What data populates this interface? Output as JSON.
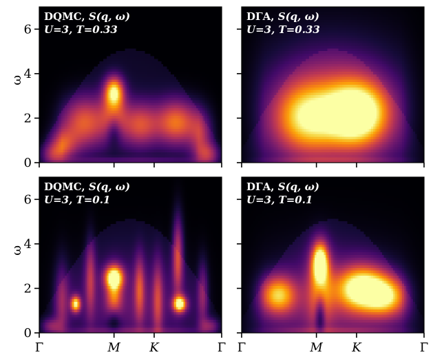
{
  "figure": {
    "shared_ylabel": "ω",
    "colormap": "inferno"
  },
  "chart_data": [
    {
      "type": "heatmap",
      "panel": "top-left",
      "annotation": {
        "line1_method": "DQMC,",
        "line1_func": "S(q, ω)",
        "line2": "U=3, T=0.33"
      },
      "ylabel": "ω",
      "ylim": [
        0,
        7
      ],
      "yticks": [
        "0",
        "2",
        "4",
        "6"
      ],
      "xticks": [
        "Γ",
        "M",
        "K",
        "Γ"
      ],
      "xtick_positions": [
        0,
        0.41,
        0.63,
        1.0
      ],
      "xtick_labels_shown": false,
      "blobs": [
        {
          "x": 0.41,
          "w": 3.2,
          "sx": 0.035,
          "sy": 0.45,
          "a": 0.75
        },
        {
          "x": 0.41,
          "w": 2.2,
          "sx": 0.05,
          "sy": 0.8,
          "a": 0.45
        },
        {
          "x": 0.25,
          "w": 1.8,
          "sx": 0.09,
          "sy": 0.8,
          "a": 0.55
        },
        {
          "x": 0.75,
          "w": 1.8,
          "sx": 0.08,
          "sy": 0.7,
          "a": 0.6
        },
        {
          "x": 0.55,
          "w": 1.7,
          "sx": 0.07,
          "sy": 0.7,
          "a": 0.5
        },
        {
          "x": 0.9,
          "w": 1.2,
          "sx": 0.05,
          "sy": 0.8,
          "a": 0.4
        },
        {
          "x": 0.12,
          "w": 0.8,
          "sx": 0.06,
          "sy": 0.5,
          "a": 0.45
        },
        {
          "x": 0.95,
          "w": 0.35,
          "sx": 0.05,
          "sy": 0.35,
          "a": 0.55
        },
        {
          "x": 0.05,
          "w": 0.35,
          "sx": 0.05,
          "sy": 0.35,
          "a": 0.5
        }
      ],
      "hole": {
        "x": 0.41,
        "w": 1.2,
        "sx": 0.03,
        "sy": 0.6,
        "depth": 0.6
      }
    },
    {
      "type": "heatmap",
      "panel": "top-right",
      "annotation": {
        "line1_method": "DΓA,",
        "line1_func": "S(q, ω)",
        "line2": "U=3, T=0.33"
      },
      "ylabel": "",
      "ylim": [
        0,
        7
      ],
      "yticks": [
        "0",
        "2",
        "4",
        "6"
      ],
      "yticks_labels_shown": false,
      "xticks": [
        "Γ",
        "M",
        "K",
        "Γ"
      ],
      "xtick_positions": [
        0,
        0.41,
        0.63,
        1.0
      ],
      "xtick_labels_shown": false,
      "blobs": [
        {
          "x": 0.63,
          "w": 2.2,
          "sx": 0.12,
          "sy": 1.0,
          "a": 0.95
        },
        {
          "x": 0.35,
          "w": 2.0,
          "sx": 0.12,
          "sy": 1.1,
          "a": 0.6
        },
        {
          "x": 0.5,
          "w": 2.5,
          "sx": 0.28,
          "sy": 2.0,
          "a": 0.4
        }
      ],
      "hole": null
    },
    {
      "type": "heatmap",
      "panel": "bottom-left",
      "annotation": {
        "line1_method": "DQMC,",
        "line1_func": "S(q, ω)",
        "line2": "U=3, T=0.1"
      },
      "ylabel": "ω",
      "ylim": [
        0,
        7
      ],
      "yticks": [
        "0",
        "2",
        "4",
        "6"
      ],
      "xticks": [
        "Γ",
        "M",
        "K",
        "Γ"
      ],
      "xtick_positions": [
        0,
        0.41,
        0.63,
        1.0
      ],
      "xtick_labels_shown": true,
      "blobs": [
        {
          "x": 0.2,
          "w": 1.3,
          "sx": 0.018,
          "sy": 0.25,
          "a": 0.85
        },
        {
          "x": 0.77,
          "w": 1.3,
          "sx": 0.025,
          "sy": 0.25,
          "a": 0.95
        },
        {
          "x": 0.41,
          "w": 2.5,
          "sx": 0.035,
          "sy": 0.35,
          "a": 0.85
        },
        {
          "x": 0.41,
          "w": 1.6,
          "sx": 0.03,
          "sy": 0.8,
          "a": 0.5
        },
        {
          "x": 0.76,
          "w": 3.5,
          "sx": 0.02,
          "sy": 1.2,
          "a": 0.5
        },
        {
          "x": 0.28,
          "w": 2.5,
          "sx": 0.02,
          "sy": 1.2,
          "a": 0.35
        },
        {
          "x": 0.55,
          "w": 2.0,
          "sx": 0.02,
          "sy": 1.0,
          "a": 0.4
        },
        {
          "x": 0.65,
          "w": 1.5,
          "sx": 0.02,
          "sy": 1.2,
          "a": 0.35
        },
        {
          "x": 0.9,
          "w": 1.8,
          "sx": 0.02,
          "sy": 1.0,
          "a": 0.35
        },
        {
          "x": 0.12,
          "w": 1.5,
          "sx": 0.03,
          "sy": 1.2,
          "a": 0.3
        },
        {
          "x": 0.5,
          "w": 1.2,
          "sx": 0.25,
          "sy": 1.5,
          "a": 0.2
        },
        {
          "x": 0.05,
          "w": 0.3,
          "sx": 0.04,
          "sy": 0.25,
          "a": 0.5
        },
        {
          "x": 0.95,
          "w": 0.3,
          "sx": 0.04,
          "sy": 0.25,
          "a": 0.5
        }
      ],
      "hole": {
        "x": 0.41,
        "w": 0.4,
        "sx": 0.035,
        "sy": 0.5,
        "depth": 0.8
      }
    },
    {
      "type": "heatmap",
      "panel": "bottom-right",
      "annotation": {
        "line1_method": "DΓA,",
        "line1_func": "S(q, ω)",
        "line2": "U=3, T=0.1"
      },
      "ylabel": "",
      "ylim": [
        0,
        7
      ],
      "yticks": [
        "0",
        "2",
        "4",
        "6"
      ],
      "yticks_labels_shown": false,
      "xticks": [
        "Γ",
        "M",
        "K",
        "Γ"
      ],
      "xtick_positions": [
        0,
        0.41,
        0.63,
        1.0
      ],
      "xtick_labels_shown": true,
      "blobs": [
        {
          "x": 0.66,
          "w": 2.0,
          "sx": 0.1,
          "sy": 0.7,
          "a": 0.95
        },
        {
          "x": 0.43,
          "w": 3.2,
          "sx": 0.03,
          "sy": 0.6,
          "a": 0.9
        },
        {
          "x": 0.43,
          "w": 2.0,
          "sx": 0.05,
          "sy": 1.2,
          "a": 0.45
        },
        {
          "x": 0.2,
          "w": 1.7,
          "sx": 0.07,
          "sy": 0.6,
          "a": 0.7
        },
        {
          "x": 0.8,
          "w": 1.6,
          "sx": 0.08,
          "sy": 0.6,
          "a": 0.6
        },
        {
          "x": 0.5,
          "w": 1.0,
          "sx": 0.3,
          "sy": 1.8,
          "a": 0.25
        }
      ],
      "hole": {
        "x": 0.43,
        "w": 0.6,
        "sx": 0.02,
        "sy": 0.7,
        "depth": 0.7
      }
    }
  ]
}
